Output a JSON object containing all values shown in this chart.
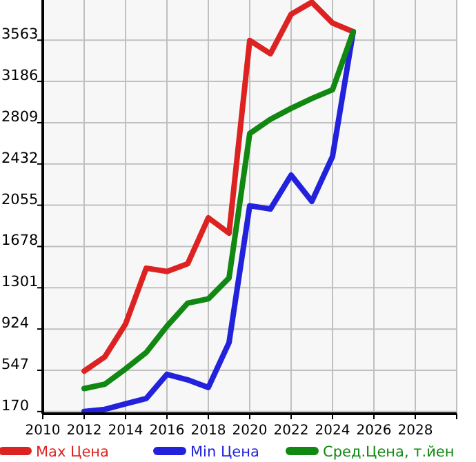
{
  "chart_data": {
    "type": "line",
    "x": [
      2012,
      2013,
      2014,
      2015,
      2016,
      2017,
      2018,
      2019,
      2020,
      2021,
      2022,
      2023,
      2024,
      2025
    ],
    "series": [
      {
        "name": "Max Цена",
        "color": "#dd2222",
        "values": [
          540,
          670,
          970,
          1480,
          1450,
          1520,
          1940,
          1800,
          3560,
          3440,
          3800,
          3910,
          3720,
          3640
        ]
      },
      {
        "name": "Min Цена",
        "color": "#2222dd",
        "values": [
          170,
          190,
          240,
          290,
          510,
          460,
          390,
          800,
          2050,
          2020,
          2330,
          2090,
          2500,
          3640
        ]
      },
      {
        "name": "Сред.Цена, т.йен",
        "color": "#118811",
        "values": [
          380,
          420,
          560,
          710,
          950,
          1160,
          1200,
          1390,
          2710,
          2840,
          2940,
          3030,
          3110,
          3640
        ]
      }
    ],
    "xlim": [
      2010,
      2030
    ],
    "xticks": [
      2010,
      2012,
      2014,
      2016,
      2018,
      2020,
      2022,
      2024,
      2026,
      2028,
      {
        "value": 2030,
        "label": null
      }
    ],
    "ylim": [
      150,
      3930
    ],
    "yticks": [
      170,
      547,
      924,
      1301,
      1678,
      2055,
      2432,
      2809,
      3186,
      3563
    ],
    "grid": true,
    "legend": "bottom",
    "marker": "none",
    "line_style": "solid"
  }
}
